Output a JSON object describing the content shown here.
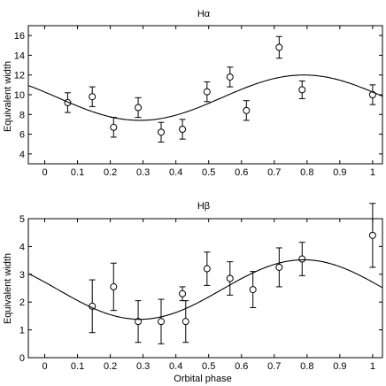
{
  "chart_data": [
    {
      "type": "scatter",
      "title": "Hα",
      "xlabel": "",
      "ylabel": "Equivalent width",
      "xlim": [
        -0.05,
        1.03
      ],
      "ylim": [
        3,
        17
      ],
      "xticks": [
        "0",
        "0.1",
        "0.2",
        "0.3",
        "0.4",
        "0.5",
        "0.6",
        "0.7",
        "0.8",
        "0.9",
        "1"
      ],
      "yticks": [
        "4",
        "6",
        "8",
        "10",
        "12",
        "14",
        "16"
      ],
      "grid": false,
      "points": {
        "x": [
          0.07,
          0.145,
          0.21,
          0.285,
          0.355,
          0.42,
          0.495,
          0.565,
          0.615,
          0.715,
          0.785,
          1.0
        ],
        "y": [
          9.2,
          9.8,
          6.7,
          8.7,
          6.2,
          6.5,
          10.3,
          11.8,
          8.4,
          14.8,
          10.5,
          10.0
        ],
        "yerr": [
          1.0,
          1.0,
          1.0,
          1.0,
          1.0,
          1.0,
          1.0,
          1.0,
          1.0,
          1.1,
          0.9,
          1.0
        ]
      },
      "fit": {
        "offset": 9.7,
        "amplitude": 2.3,
        "phase_of_max": 0.79
      }
    },
    {
      "type": "scatter",
      "title": "Hβ",
      "xlabel": "Orbital phase",
      "ylabel": "Equivalent width",
      "xlim": [
        -0.05,
        1.03
      ],
      "ylim": [
        0,
        5
      ],
      "xticks": [
        "0",
        "0.1",
        "0.2",
        "0.3",
        "0.4",
        "0.5",
        "0.6",
        "0.7",
        "0.8",
        "0.9",
        "1"
      ],
      "yticks": [
        "0",
        "1",
        "2",
        "3",
        "4",
        "5"
      ],
      "grid": false,
      "points": {
        "x": [
          0.145,
          0.21,
          0.285,
          0.355,
          0.42,
          0.43,
          0.495,
          0.565,
          0.635,
          0.715,
          0.785,
          1.0
        ],
        "y": [
          1.85,
          2.55,
          1.3,
          1.3,
          2.3,
          1.3,
          3.2,
          2.85,
          2.45,
          3.25,
          3.55,
          4.4
        ],
        "yerr": [
          0.95,
          0.85,
          0.75,
          0.8,
          0.25,
          0.75,
          0.6,
          0.6,
          0.65,
          0.7,
          0.6,
          1.15
        ]
      },
      "fit": {
        "offset": 2.45,
        "amplitude": 1.07,
        "phase_of_max": 0.79
      }
    }
  ]
}
